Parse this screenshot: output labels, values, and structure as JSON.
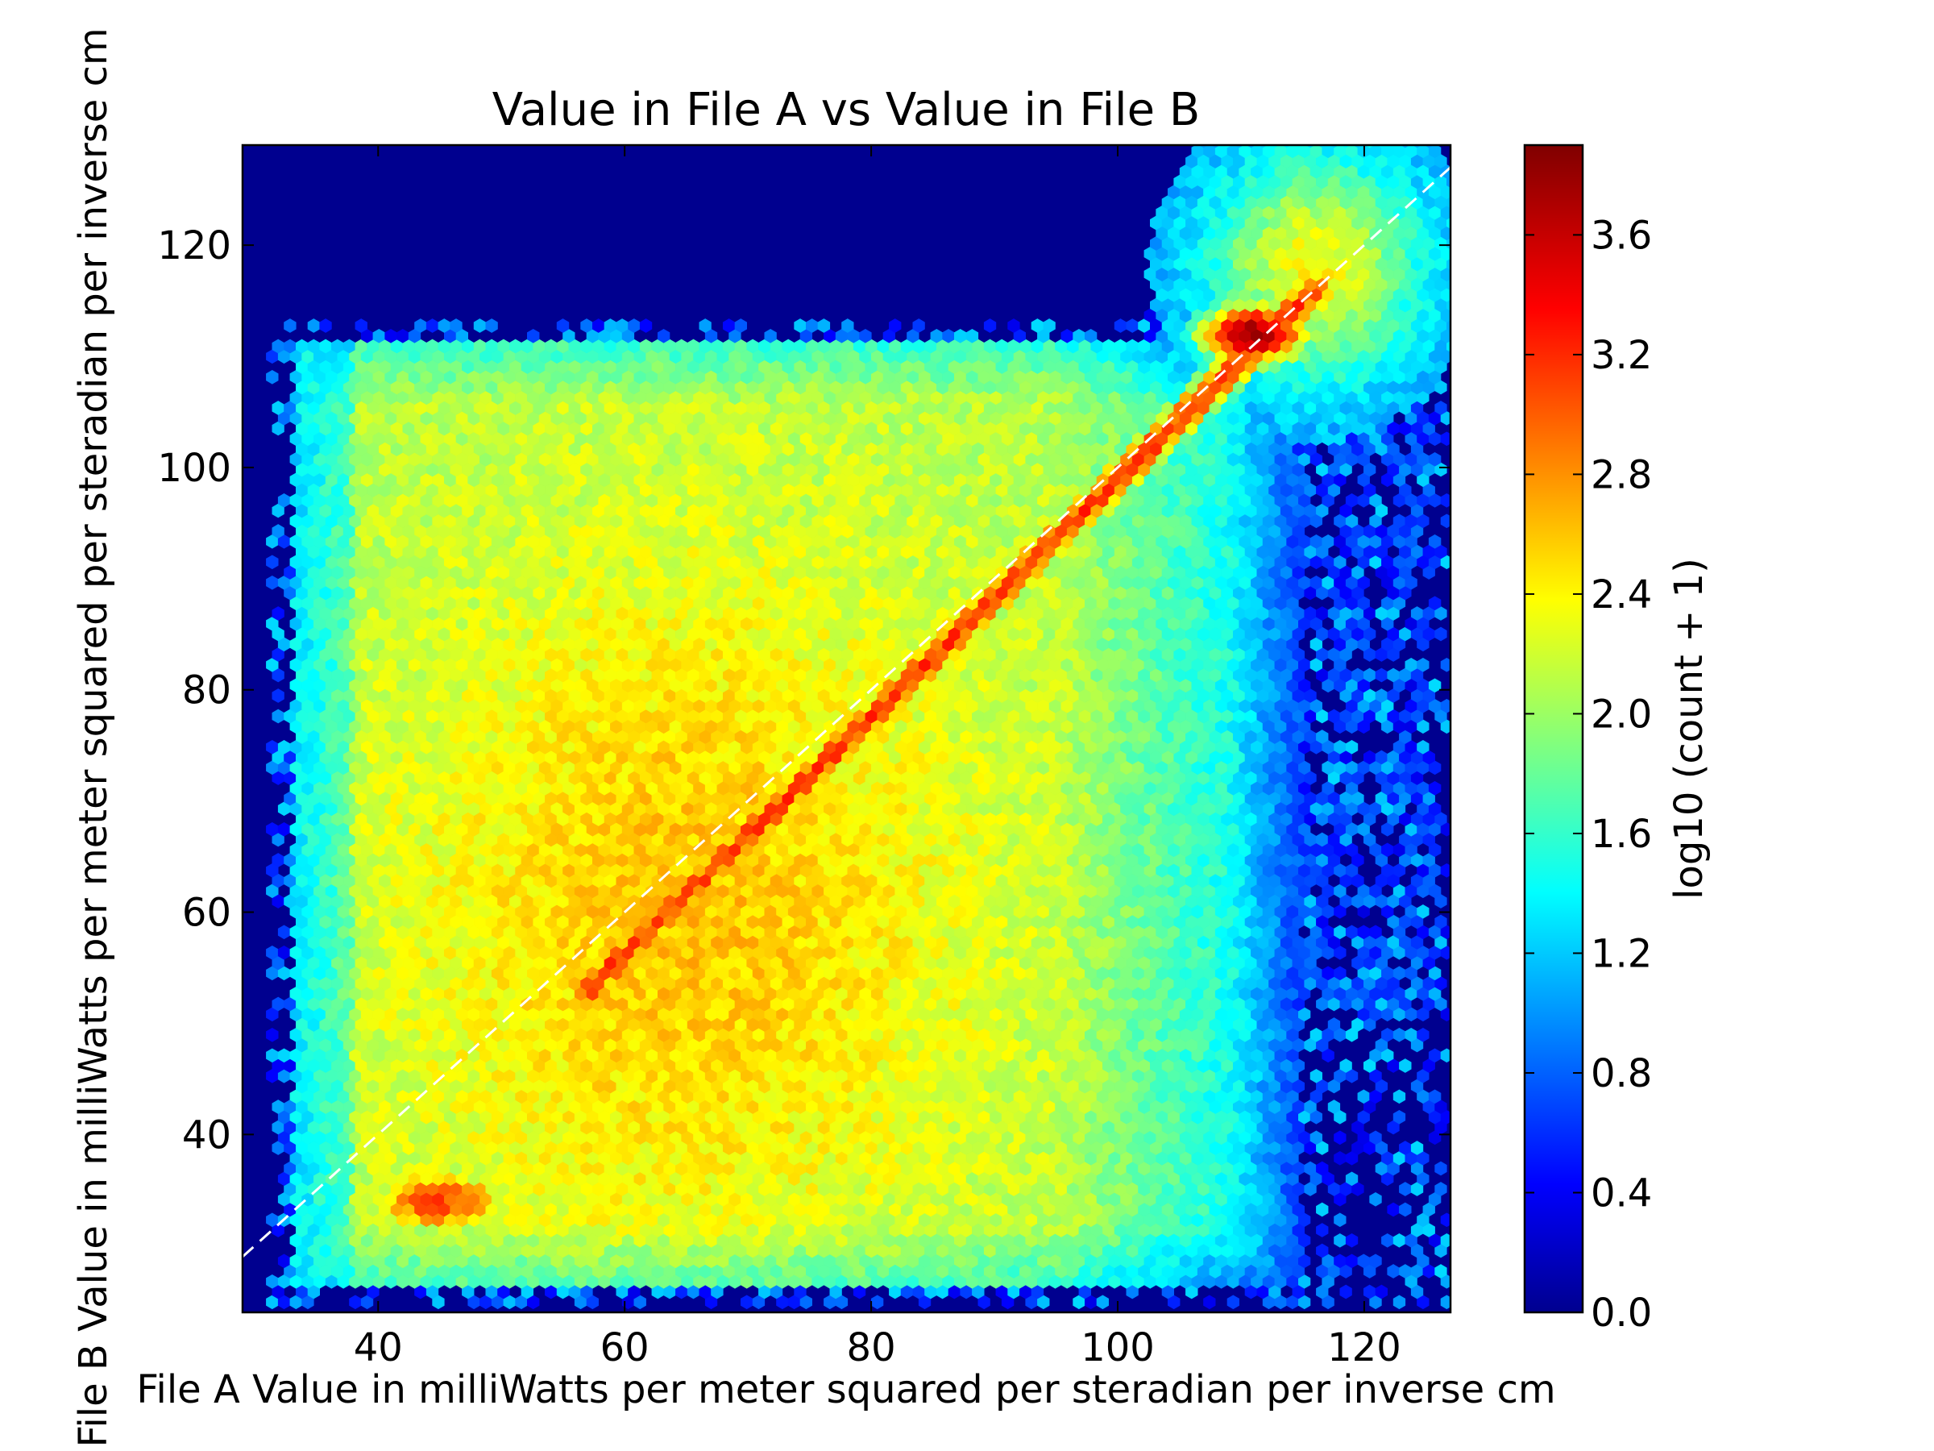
{
  "chart_data": {
    "type": "heatmap",
    "subtype": "hexbin",
    "title": "Value in File A vs Value in File B",
    "xlabel": "File A Value in milliWatts per meter squared per steradian per inverse cm",
    "ylabel": "File B Value in milliWatts per meter squared per steradian per inverse cm",
    "xlim": [
      29,
      127
    ],
    "ylim": [
      24,
      129
    ],
    "x_ticks": [
      40,
      60,
      80,
      100,
      120
    ],
    "y_ticks": [
      40,
      60,
      80,
      100,
      120
    ],
    "colorbar": {
      "label": "log10 (count + 1)",
      "range": [
        0,
        3.9
      ],
      "ticks": [
        "0.0",
        "0.4",
        "0.8",
        "1.2",
        "1.6",
        "2.0",
        "2.4",
        "2.8",
        "3.2",
        "3.6"
      ],
      "colormap": "jet"
    },
    "background_color": "#00008f",
    "reference_line": {
      "style": "dashed",
      "color": "#ffffff",
      "from": [
        29,
        29
      ],
      "to": [
        127,
        127
      ]
    },
    "density_regions": [
      {
        "name": "main envelope",
        "x_range": [
          33,
          115
        ],
        "y_range": [
          26,
          111
        ],
        "level": 1.9
      },
      {
        "name": "diagonal ridge",
        "from": [
          57,
          53
        ],
        "to": [
          116,
          116
        ],
        "level": 3.2
      },
      {
        "name": "lower-left cluster",
        "center": [
          45,
          34
        ],
        "level": 3.1
      },
      {
        "name": "upper-right peak",
        "center": [
          111,
          112
        ],
        "level": 3.8
      },
      {
        "name": "upper-right plume",
        "center": [
          115,
          120
        ],
        "level": 2.3
      }
    ]
  }
}
